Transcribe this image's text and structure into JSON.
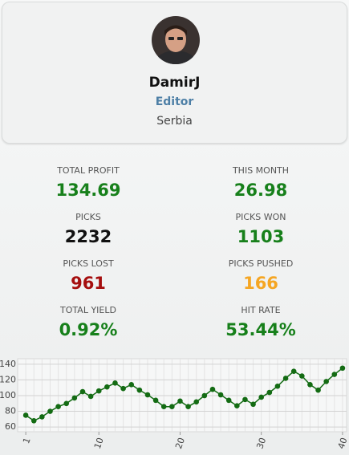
{
  "profile": {
    "name": "DamirJ",
    "role": "Editor",
    "country": "Serbia"
  },
  "stats": [
    {
      "label": "TOTAL PROFIT",
      "value": "134.69",
      "color": "#17801b"
    },
    {
      "label": "THIS MONTH",
      "value": "26.98",
      "color": "#17801b"
    },
    {
      "label": "PICKS",
      "value": "2232",
      "color": "#111111"
    },
    {
      "label": "PICKS WON",
      "value": "1103",
      "color": "#17801b"
    },
    {
      "label": "PICKS LOST",
      "value": "961",
      "color": "#a50e0e"
    },
    {
      "label": "PICKS PUSHED",
      "value": "166",
      "color": "#f5a623"
    },
    {
      "label": "TOTAL YIELD",
      "value": "0.92%",
      "color": "#17801b"
    },
    {
      "label": "HIT RATE",
      "value": "53.44%",
      "color": "#17801b"
    }
  ],
  "chart_data": {
    "type": "line",
    "x": [
      1,
      2,
      3,
      4,
      5,
      6,
      7,
      8,
      9,
      10,
      11,
      12,
      13,
      14,
      15,
      16,
      17,
      18,
      19,
      20,
      21,
      22,
      23,
      24,
      25,
      26,
      27,
      28,
      29,
      30,
      31,
      32,
      33,
      34,
      35,
      36,
      37,
      38,
      39,
      40
    ],
    "series": [
      {
        "color": "#136b13",
        "values": [
          75,
          68,
          73,
          80,
          86,
          90,
          97,
          105,
          99,
          106,
          111,
          116,
          109,
          114,
          107,
          101,
          94,
          86,
          86,
          93,
          86,
          92,
          100,
          108,
          101,
          94,
          87,
          95,
          89,
          98,
          104,
          112,
          122,
          131,
          125,
          114,
          107,
          118,
          127,
          135
        ]
      }
    ],
    "xlim": [
      0,
      40.5
    ],
    "ylim": [
      54,
      147
    ],
    "xticks": [
      1,
      10,
      20,
      30,
      40
    ],
    "yticks": [
      60,
      80,
      100,
      120,
      140
    ],
    "grid": true
  }
}
